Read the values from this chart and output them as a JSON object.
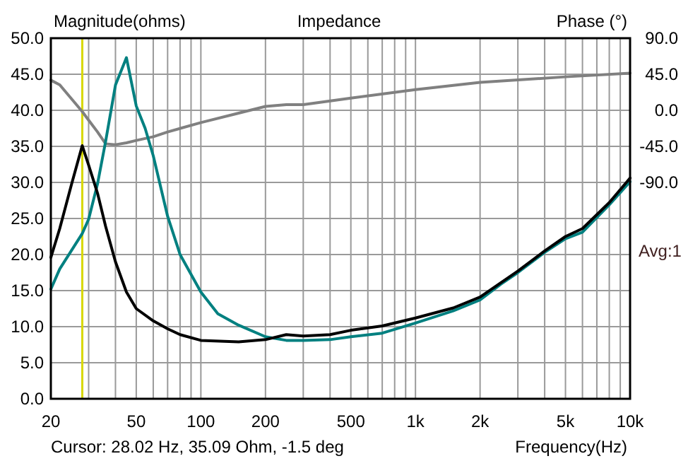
{
  "chart_data": {
    "type": "line",
    "title": "Impedance",
    "ylabel": "Magnitude(ohms)",
    "y2label": "Phase (°)",
    "xlabel": "Frequency(Hz)",
    "log": "x",
    "grid": true,
    "annotations": [
      "Cursor: 28.02 Hz, 35.09 Ohm, -1.5 deg",
      "Avg:1"
    ],
    "xlim": [
      20,
      10000
    ],
    "ylim": [
      0,
      50
    ],
    "y2lim": [
      -360,
      90
    ],
    "xticks": [
      20,
      {
        "value": 30,
        "label": null
      },
      {
        "value": 40,
        "label": null
      },
      50,
      {
        "value": 60,
        "label": null
      },
      {
        "value": 70,
        "label": null
      },
      {
        "value": 80,
        "label": null
      },
      {
        "value": 90,
        "label": null
      },
      100,
      200,
      {
        "value": 300,
        "label": null
      },
      {
        "value": 400,
        "label": null
      },
      500,
      {
        "value": 600,
        "label": null
      },
      {
        "value": 700,
        "label": null
      },
      {
        "value": 800,
        "label": null
      },
      {
        "value": 900,
        "label": null
      },
      {
        "value": 1000,
        "label": "1k"
      },
      {
        "value": 2000,
        "label": "2k"
      },
      {
        "value": 3000,
        "label": null
      },
      {
        "value": 4000,
        "label": null
      },
      {
        "value": 5000,
        "label": "5k"
      },
      {
        "value": 6000,
        "label": null
      },
      {
        "value": 7000,
        "label": null
      },
      {
        "value": 8000,
        "label": null
      },
      {
        "value": 9000,
        "label": null
      },
      {
        "value": 10000,
        "label": "10k"
      }
    ],
    "yticks": [
      {
        "value": 0,
        "label": "0.0"
      },
      {
        "value": 5,
        "label": "5.0"
      },
      {
        "value": 10,
        "label": "10.0"
      },
      {
        "value": 15,
        "label": "15.0"
      },
      {
        "value": 20,
        "label": "20.0"
      },
      {
        "value": 25,
        "label": "25.0"
      },
      {
        "value": 30,
        "label": "30.0"
      },
      {
        "value": 35,
        "label": "35.0"
      },
      {
        "value": 40,
        "label": "40.0"
      },
      {
        "value": 45,
        "label": "45.0"
      },
      {
        "value": 50,
        "label": "50.0"
      }
    ],
    "y2ticks": [
      {
        "value": 90,
        "label": "90.0"
      },
      {
        "value": 45,
        "label": "45.0"
      },
      {
        "value": 0,
        "label": "0.0"
      },
      {
        "value": -45,
        "label": "-45.0"
      },
      {
        "value": -90,
        "label": "-90.0"
      }
    ],
    "ref_lines": [
      {
        "axis": "x",
        "value": 28.02,
        "color": "#d8d800"
      }
    ],
    "series": [
      {
        "color": "#808080",
        "axis": "y2",
        "x": [
          20,
          22,
          25,
          28,
          30,
          33,
          36,
          40,
          45,
          50,
          60,
          70,
          100,
          150,
          200,
          250,
          300,
          500,
          1000,
          2000,
          5000,
          10000
        ],
        "values": [
          37.6,
          31.8,
          14.1,
          -1.5,
          -12.4,
          -27,
          -41.8,
          -42.9,
          -40.6,
          -37.6,
          -33,
          -27,
          -15.3,
          -3.5,
          4.8,
          7.1,
          7,
          15.3,
          25.9,
          34.8,
          41.8,
          46.4
        ]
      },
      {
        "color": "#008080",
        "x": [
          20,
          22,
          25,
          28,
          30,
          33,
          36,
          40,
          45,
          50,
          55,
          60,
          70,
          80,
          100,
          120,
          150,
          200,
          250,
          300,
          400,
          500,
          700,
          1000,
          1500,
          2000,
          2500,
          3000,
          4000,
          5000,
          6000,
          8000,
          10000
        ],
        "values": [
          15.2,
          18,
          20.6,
          22.9,
          24.9,
          29.8,
          35.7,
          43.5,
          47.3,
          40.6,
          37.5,
          33.7,
          25.3,
          20,
          14.8,
          11.8,
          10.2,
          8.6,
          8.1,
          8.1,
          8.2,
          8.6,
          9.1,
          10.5,
          12.2,
          13.7,
          15.9,
          17.5,
          20.3,
          22.2,
          23.1,
          26.9,
          30.1
        ]
      },
      {
        "color": "#000000",
        "x": [
          20,
          22,
          25,
          28,
          30,
          33,
          36,
          40,
          45,
          50,
          60,
          70,
          80,
          100,
          150,
          200,
          250,
          300,
          400,
          500,
          700,
          1000,
          1500,
          2000,
          2500,
          3000,
          4000,
          5000,
          6000,
          8000,
          10000
        ],
        "values": [
          19.6,
          23.6,
          29.8,
          35.1,
          32.4,
          28.5,
          23.9,
          19,
          14.8,
          12.5,
          10.8,
          9.7,
          8.9,
          8.1,
          7.9,
          8.2,
          8.9,
          8.7,
          8.9,
          9.5,
          10.1,
          11.2,
          12.6,
          14.1,
          16.1,
          17.7,
          20.5,
          22.5,
          23.6,
          27.2,
          30.6
        ]
      }
    ]
  }
}
